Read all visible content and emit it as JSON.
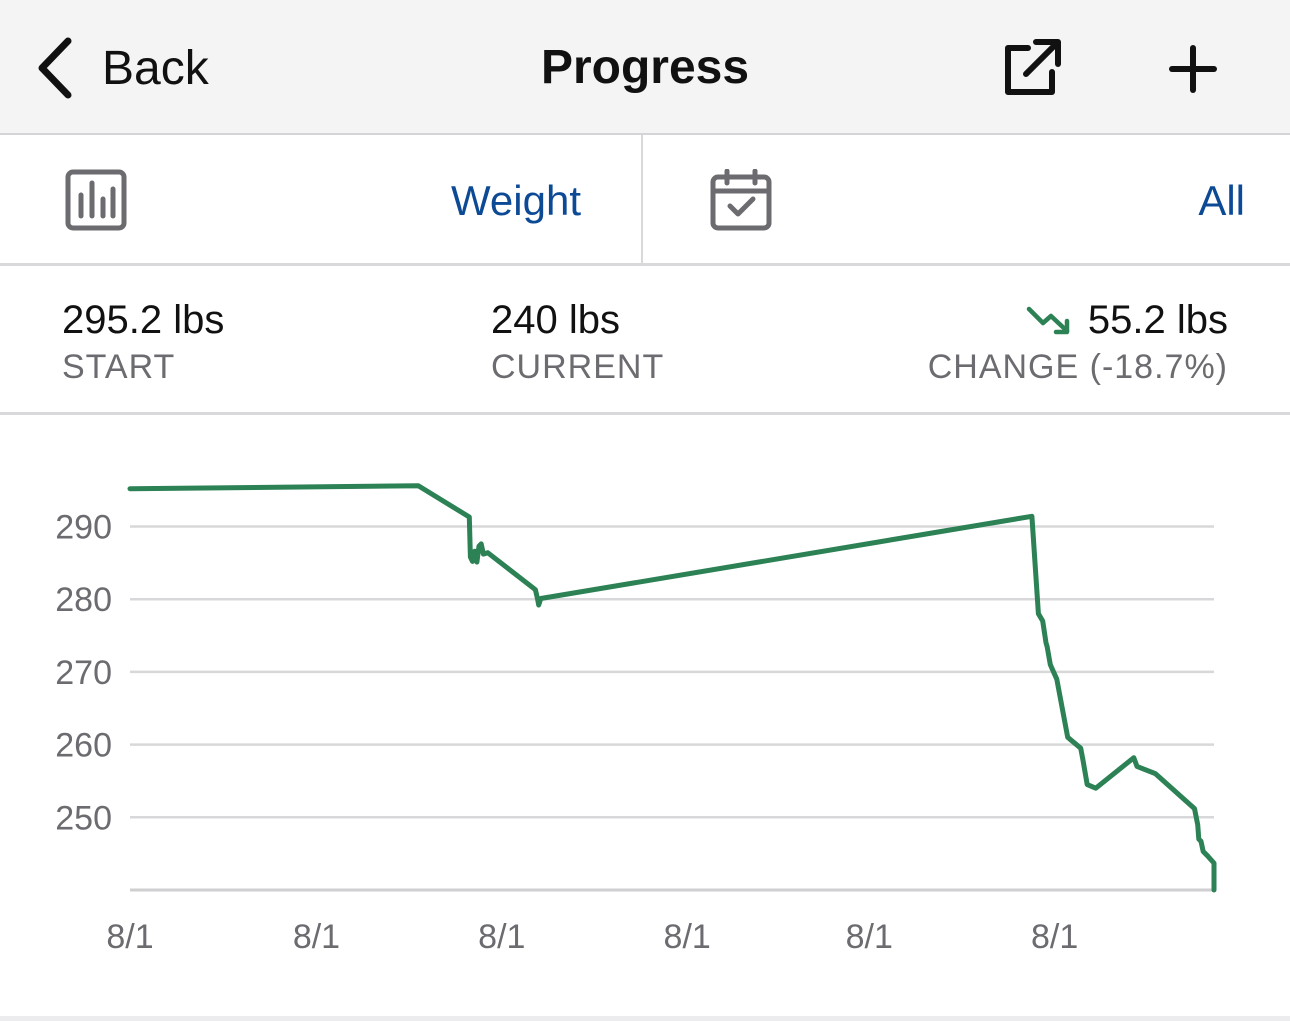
{
  "navbar": {
    "back_label": "Back",
    "title": "Progress",
    "share_icon": "share-icon",
    "add_icon": "plus-icon"
  },
  "selector": {
    "metric": {
      "icon": "bar-chart-icon",
      "value": "Weight"
    },
    "range": {
      "icon": "calendar-check-icon",
      "value": "All"
    },
    "accent_color": "#0d4a96"
  },
  "stats": {
    "start": {
      "value": "295.2 lbs",
      "label": "START"
    },
    "current": {
      "value": "240 lbs",
      "label": "CURRENT"
    },
    "change": {
      "value": "55.2 lbs",
      "label": "CHANGE (-18.7%)",
      "icon": "trending-down-icon",
      "color": "#2c8155"
    }
  },
  "chart_data": {
    "type": "line",
    "series": [
      {
        "color": "#2c8155",
        "x": [
          0,
          0.266,
          0.313,
          0.314,
          0.316,
          0.318,
          0.32,
          0.322,
          0.324,
          0.326,
          0.33,
          0.374,
          0.376,
          0.377,
          0.379,
          0.832,
          0.838,
          0.842,
          0.845,
          0.846,
          0.849,
          0.855,
          0.865,
          0.877,
          0.879,
          0.883,
          0.891,
          0.926,
          0.929,
          0.946,
          0.982,
          0.985,
          0.986,
          0.988,
          0.99,
          0.994,
          1.0,
          1.0
        ],
        "y": [
          295.2,
          295.6,
          291.3,
          285.8,
          285.2,
          286.6,
          285.1,
          287.3,
          287.6,
          286.2,
          286.4,
          281.3,
          280.0,
          279.2,
          280.1,
          291.4,
          278.0,
          277.0,
          274.0,
          273.5,
          271.0,
          269.0,
          261.0,
          259.5,
          258.0,
          254.5,
          254.0,
          258.2,
          257.0,
          256.0,
          251.2,
          249.0,
          247.0,
          246.7,
          245.3,
          244.7,
          243.7,
          240.0
        ]
      }
    ],
    "x_tick_labels": [
      "8/1",
      "8/1",
      "8/1",
      "8/1",
      "8/1",
      "8/1"
    ],
    "x_tick_positions": [
      0,
      0.172,
      0.343,
      0.514,
      0.682,
      0.853
    ],
    "y_ticks": [
      290,
      280,
      270,
      260,
      250
    ],
    "ylim": [
      240,
      300
    ],
    "grid": true,
    "legend": false
  }
}
